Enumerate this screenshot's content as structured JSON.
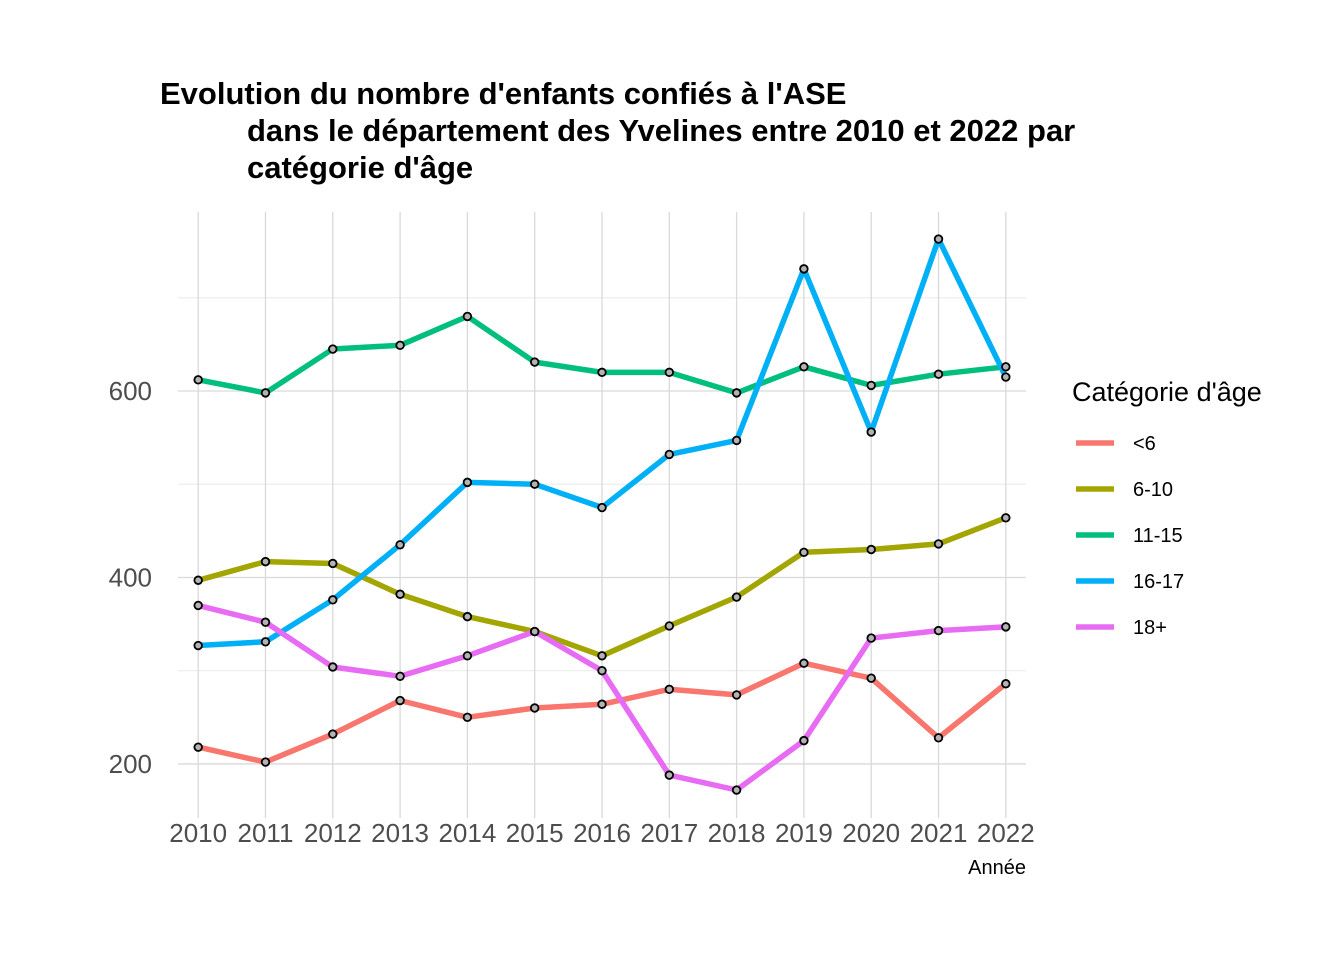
{
  "chart_data": {
    "type": "line",
    "title_lines": [
      "Evolution du nombre d'enfants confiés à l'ASE",
      "dans le département des Yvelines entre 2010 et 2022 par",
      "catégorie d'âge"
    ],
    "xlabel": "Année",
    "ylabel": "",
    "x": [
      2010,
      2011,
      2012,
      2013,
      2014,
      2015,
      2016,
      2017,
      2018,
      2019,
      2020,
      2021,
      2022
    ],
    "x_tick_labels": [
      "2010",
      "2011",
      "2012",
      "2013",
      "2014",
      "2015",
      "2016",
      "2017",
      "2018",
      "2019",
      "2020",
      "2021",
      "2022"
    ],
    "y_ticks": [
      200,
      400,
      600
    ],
    "y_tick_labels": [
      "200",
      "400",
      "600"
    ],
    "ylim": [
      142,
      792
    ],
    "grid": true,
    "legend_title": "Catégorie d'âge",
    "legend_position": "right",
    "series": [
      {
        "name": "<6",
        "color": "#F8766D",
        "values": [
          218,
          202,
          232,
          268,
          250,
          260,
          264,
          280,
          274,
          308,
          292,
          228,
          286
        ]
      },
      {
        "name": "6-10",
        "color": "#A3A500",
        "values": [
          397,
          417,
          415,
          382,
          358,
          342,
          316,
          348,
          379,
          427,
          430,
          436,
          464
        ]
      },
      {
        "name": "11-15",
        "color": "#00BF7D",
        "values": [
          612,
          598,
          645,
          649,
          680,
          631,
          620,
          620,
          598,
          626,
          606,
          618,
          626
        ]
      },
      {
        "name": "16-17",
        "color": "#00B0F6",
        "values": [
          327,
          331,
          376,
          435,
          502,
          500,
          475,
          532,
          547,
          731,
          556,
          763,
          615
        ]
      },
      {
        "name": "18+",
        "color": "#E76BF3",
        "values": [
          370,
          352,
          304,
          294,
          316,
          342,
          300,
          188,
          172,
          225,
          335,
          343,
          347
        ]
      }
    ]
  }
}
